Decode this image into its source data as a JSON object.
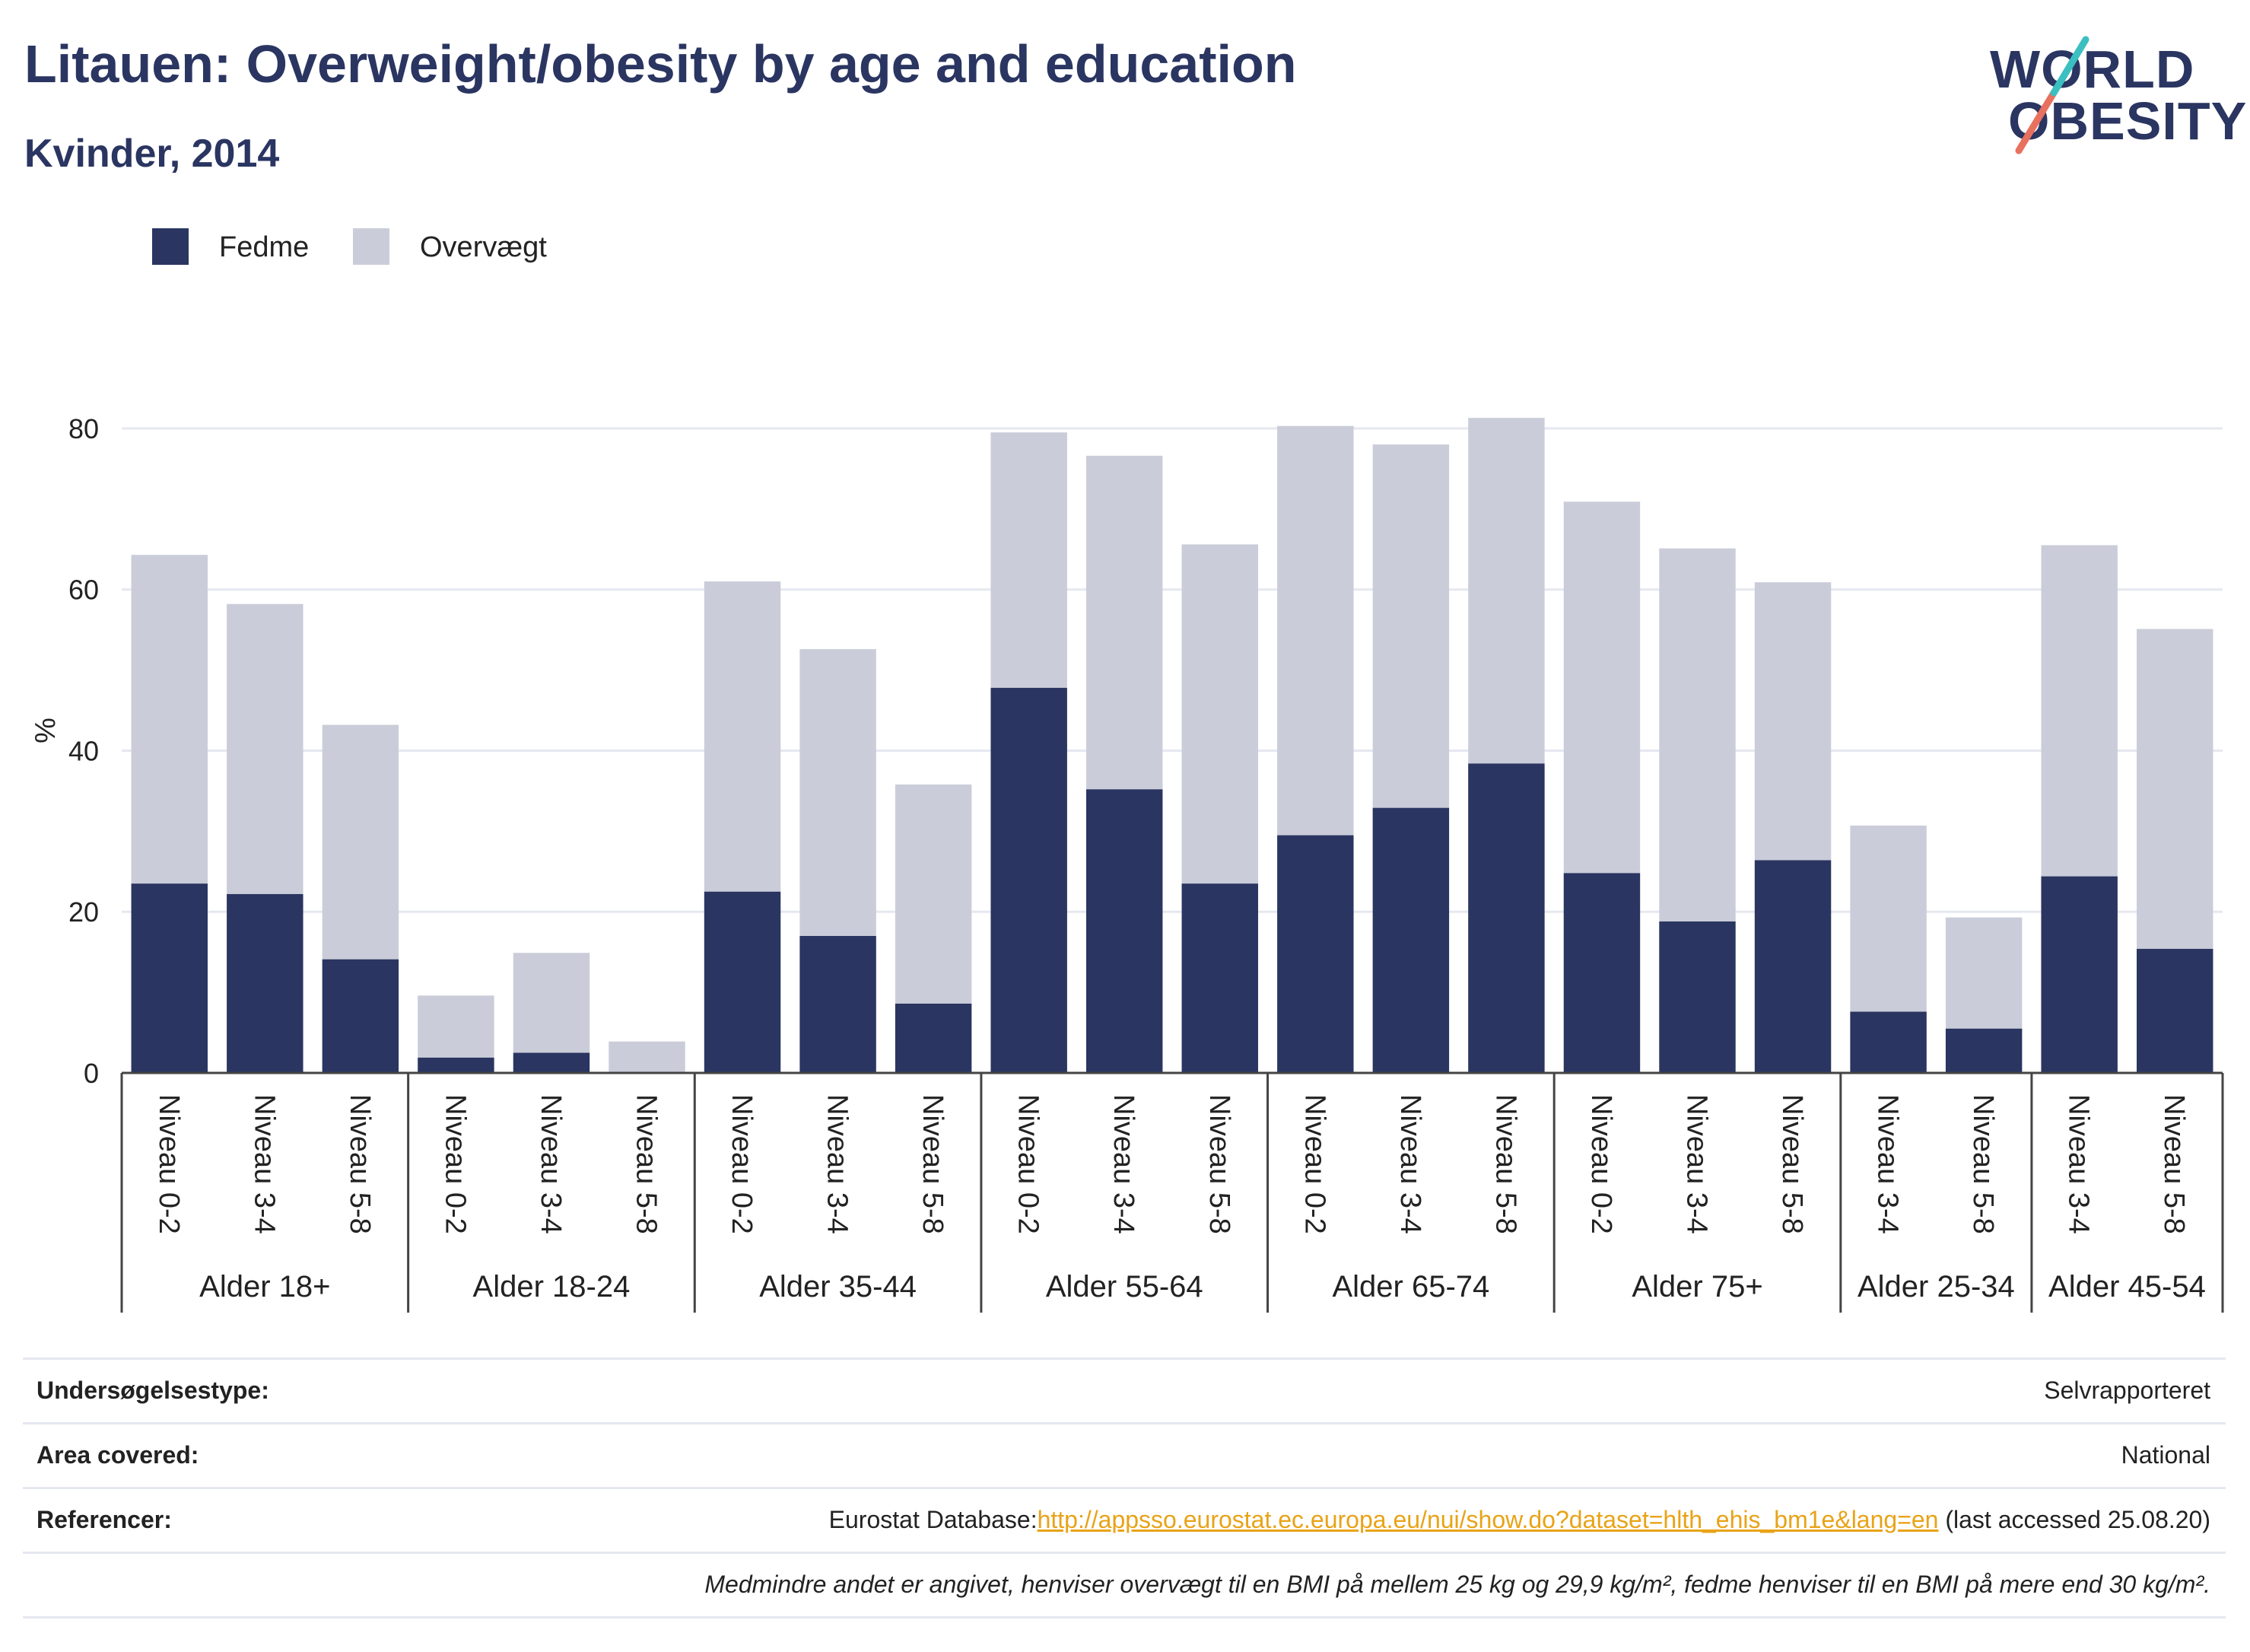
{
  "title": "Litauen: Overweight/obesity by age and education",
  "subtitle": "Kvinder, 2014",
  "logo": {
    "line1": "WORLD",
    "line2": "OBESITY"
  },
  "colors": {
    "obesity": "#2a3561",
    "overweight": "#cacdd9",
    "grid": "#e6e8f0",
    "axis": "#444444",
    "link": "#e8a317"
  },
  "legend": [
    {
      "label": "Fedme",
      "color": "#2a3561"
    },
    {
      "label": "Overvægt",
      "color": "#cacdd9"
    }
  ],
  "chart_data": {
    "type": "bar",
    "stacked": true,
    "ylabel": "%",
    "ylim": [
      0,
      85
    ],
    "yticks": [
      0,
      20,
      40,
      60,
      80
    ],
    "grid": true,
    "legend_position": "top-left",
    "groups": [
      {
        "label": "Alder 18+",
        "levels": [
          "Niveau 0-2",
          "Niveau 3-4",
          "Niveau 5-8"
        ]
      },
      {
        "label": "Alder 18-24",
        "levels": [
          "Niveau 0-2",
          "Niveau 3-4",
          "Niveau 5-8"
        ]
      },
      {
        "label": "Alder 35-44",
        "levels": [
          "Niveau 0-2",
          "Niveau 3-4",
          "Niveau 5-8"
        ]
      },
      {
        "label": "Alder 55-64",
        "levels": [
          "Niveau 0-2",
          "Niveau 3-4",
          "Niveau 5-8"
        ]
      },
      {
        "label": "Alder 65-74",
        "levels": [
          "Niveau 0-2",
          "Niveau 3-4",
          "Niveau 5-8"
        ]
      },
      {
        "label": "Alder 75+",
        "levels": [
          "Niveau 0-2",
          "Niveau 3-4",
          "Niveau 5-8"
        ]
      },
      {
        "label": "Alder 25-34",
        "levels": [
          "Niveau 3-4",
          "Niveau 5-8"
        ]
      },
      {
        "label": "Alder 45-54",
        "levels": [
          "Niveau 3-4",
          "Niveau 5-8"
        ]
      }
    ],
    "series": [
      {
        "name": "Fedme",
        "values": [
          23.5,
          22.2,
          14.1,
          1.9,
          2.5,
          0,
          22.5,
          17.0,
          8.6,
          47.8,
          35.2,
          23.5,
          29.5,
          32.9,
          38.4,
          24.8,
          18.8,
          26.4,
          7.6,
          5.5,
          24.4,
          15.4
        ]
      },
      {
        "name": "Overvægt",
        "values": [
          40.8,
          36.0,
          29.1,
          7.7,
          12.4,
          3.9,
          38.5,
          35.6,
          27.2,
          31.7,
          41.4,
          42.1,
          50.8,
          45.1,
          42.9,
          46.1,
          46.3,
          34.5,
          23.1,
          13.8,
          41.1,
          39.7
        ]
      }
    ]
  },
  "info": {
    "survey_type": {
      "label": "Undersøgelsestype:",
      "value": "Selvrapporteret"
    },
    "area": {
      "label": "Area covered:",
      "value": "National"
    },
    "references": {
      "label": "Referencer:",
      "prefix": "Eurostat Database:",
      "link": "http://appsso.eurostat.ec.europa.eu/nui/show.do?dataset=hlth_ehis_bm1e&lang=en",
      "suffix": " (last accessed 25.08.20)"
    },
    "note": "Medmindre andet er angivet, henviser overvægt til en BMI på mellem 25 kg og 29,9 kg/m², fedme henviser til en BMI på mere end 30 kg/m²."
  }
}
